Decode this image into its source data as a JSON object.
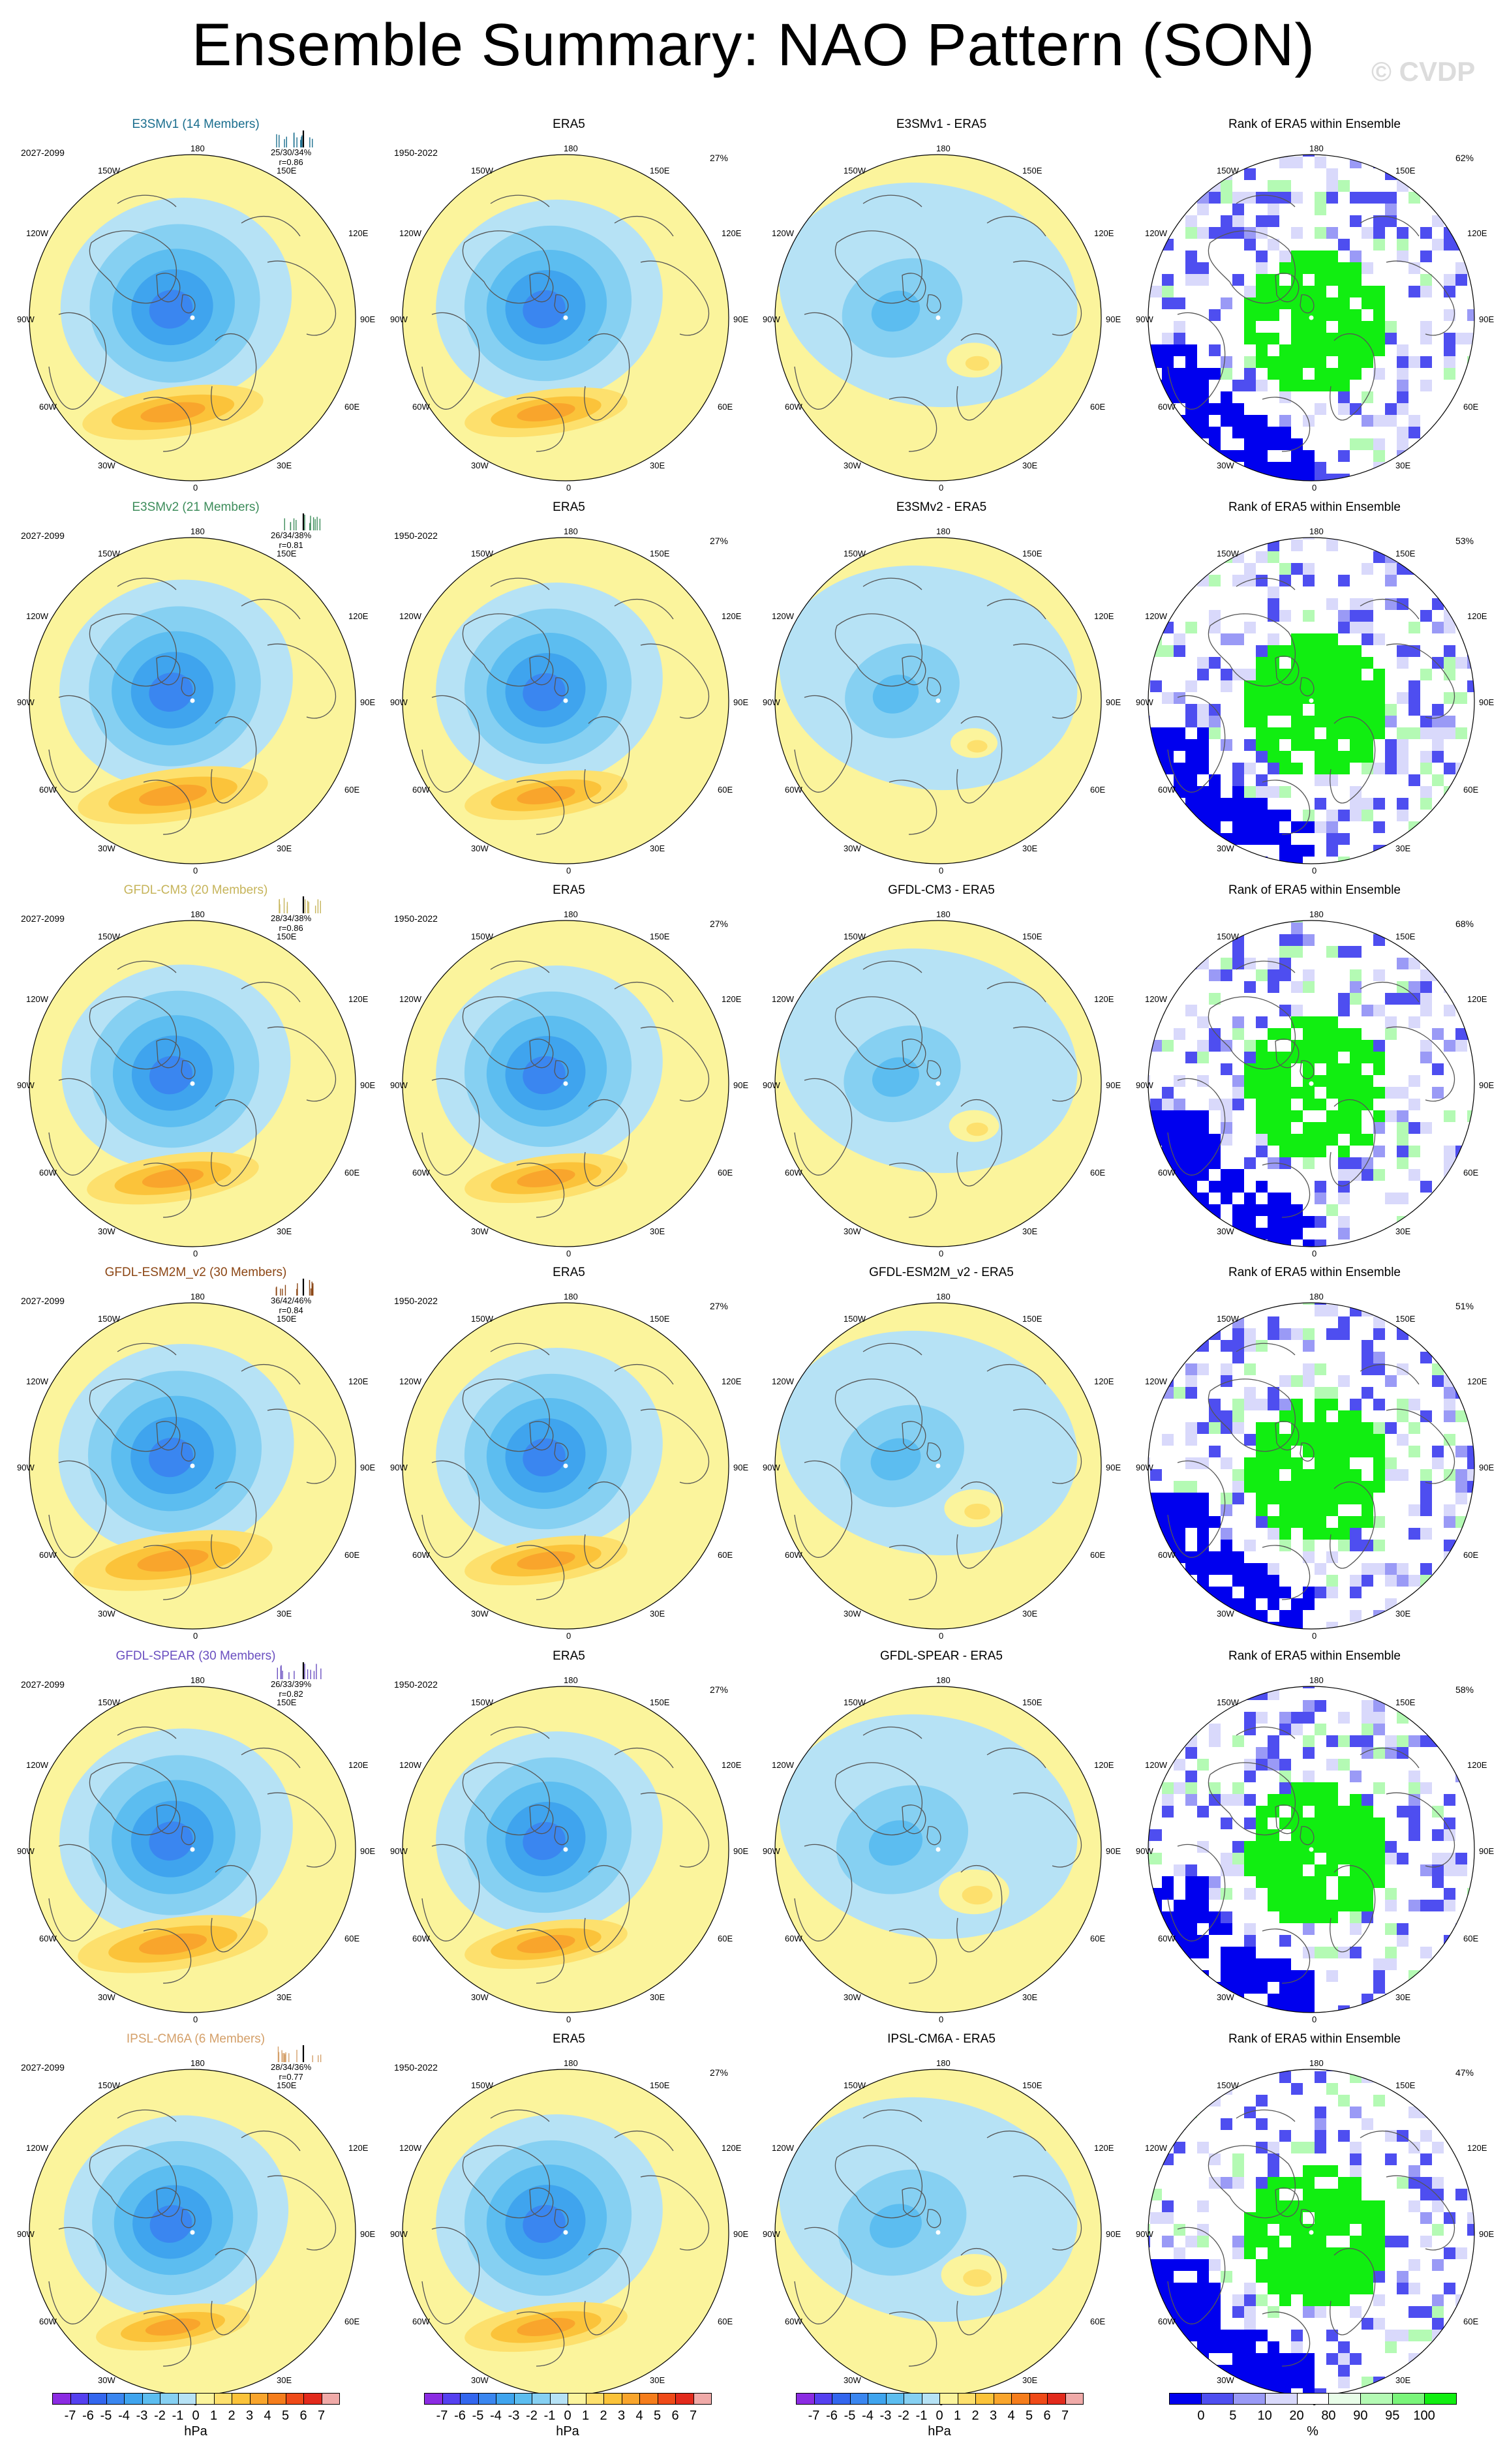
{
  "title": "Ensemble Summary: NAO Pattern (SON)",
  "watermark": "© CVDP",
  "colors": {
    "neg": [
      "#8b2be2",
      "#5540f0",
      "#3366ee",
      "#3a86f0",
      "#3fa4ee",
      "#5cbdf0",
      "#86d0f2",
      "#b6e2f5"
    ],
    "pos": [
      "#fbf49c",
      "#fde06d",
      "#fbc33a",
      "#f9a52c",
      "#f57d1c",
      "#ef4a18",
      "#e22a1c",
      "#f0aaa8"
    ],
    "rank": [
      "#0000ee",
      "#4e4ef0",
      "#9a9af6",
      "#d9d9fb",
      "#ffffff",
      "#e8fde8",
      "#b4fab4",
      "#7af57a",
      "#11ee11"
    ],
    "land": "#555555"
  },
  "colorbar": {
    "hpa_labels": [
      "-7",
      "-6",
      "-5",
      "-4",
      "-3",
      "-2",
      "-1",
      "0",
      "1",
      "2",
      "3",
      "4",
      "5",
      "6",
      "7"
    ],
    "hpa_unit": "hPa",
    "rank_labels": [
      "0",
      "5",
      "10",
      "20",
      "80",
      "90",
      "95",
      "100"
    ],
    "rank_unit": "%"
  },
  "lon_labels": [
    "180",
    "150W",
    "150E",
    "120W",
    "120E",
    "90W",
    "90E",
    "60W",
    "60E",
    "30W",
    "30E",
    "0"
  ],
  "rows": [
    {
      "model": "E3SMv1 (14 Members)",
      "model_color": "#1a6e8e",
      "years": "2027-2099",
      "stats": "25/30/34%",
      "r": "r=0.86",
      "obs_title": "ERA5",
      "obs_years": "1950-2022",
      "obs_pct": "27%",
      "diff_title": "E3SMv1 - ERA5",
      "rank_title": "Rank of ERA5 within Ensemble",
      "rank_pct": "62%",
      "model_amp": 1.0,
      "diff_amp": 0.35,
      "rank_seed": 3
    },
    {
      "model": "E3SMv2 (21 Members)",
      "model_color": "#3c8c5a",
      "years": "2027-2099",
      "stats": "26/34/38%",
      "r": "r=0.81",
      "obs_title": "ERA5",
      "obs_years": "1950-2022",
      "obs_pct": "27%",
      "diff_title": "E3SMv2 - ERA5",
      "rank_title": "Rank of ERA5 within Ensemble",
      "rank_pct": "53%",
      "model_amp": 1.05,
      "diff_amp": 0.3,
      "rank_seed": 7
    },
    {
      "model": "GFDL-CM3 (20 Members)",
      "model_color": "#c6b45a",
      "years": "2027-2099",
      "stats": "28/34/38%",
      "r": "r=0.86",
      "obs_title": "ERA5",
      "obs_years": "1950-2022",
      "obs_pct": "27%",
      "diff_title": "GFDL-CM3 - ERA5",
      "rank_title": "Rank of ERA5 within Ensemble",
      "rank_pct": "68%",
      "model_amp": 0.95,
      "diff_amp": 0.32,
      "rank_seed": 11
    },
    {
      "model": "GFDL-ESM2M_v2 (30 Members)",
      "model_color": "#8b4513",
      "years": "2027-2099",
      "stats": "36/42/46%",
      "r": "r=0.84",
      "obs_title": "ERA5",
      "obs_years": "1950-2022",
      "obs_pct": "27%",
      "diff_title": "GFDL-ESM2M_v2 - ERA5",
      "rank_title": "Rank of ERA5 within Ensemble",
      "rank_pct": "51%",
      "model_amp": 1.1,
      "diff_amp": 0.38,
      "rank_seed": 17
    },
    {
      "model": "GFDL-SPEAR (30 Members)",
      "model_color": "#6a4fc0",
      "years": "2027-2099",
      "stats": "26/33/39%",
      "r": "r=0.82",
      "obs_title": "ERA5",
      "obs_years": "1950-2022",
      "obs_pct": "27%",
      "diff_title": "GFDL-SPEAR - ERA5",
      "rank_title": "Rank of ERA5 within Ensemble",
      "rank_pct": "58%",
      "model_amp": 1.05,
      "diff_amp": 0.45,
      "rank_seed": 23
    },
    {
      "model": "IPSL-CM6A (6 Members)",
      "model_color": "#d4a06a",
      "years": "2027-2099",
      "stats": "28/34/36%",
      "r": "r=0.77",
      "obs_title": "ERA5",
      "obs_years": "1950-2022",
      "obs_pct": "27%",
      "diff_title": "IPSL-CM6A - ERA5",
      "rank_title": "Rank of ERA5 within Ensemble",
      "rank_pct": "47%",
      "model_amp": 0.85,
      "diff_amp": 0.42,
      "rank_seed": 29
    }
  ]
}
